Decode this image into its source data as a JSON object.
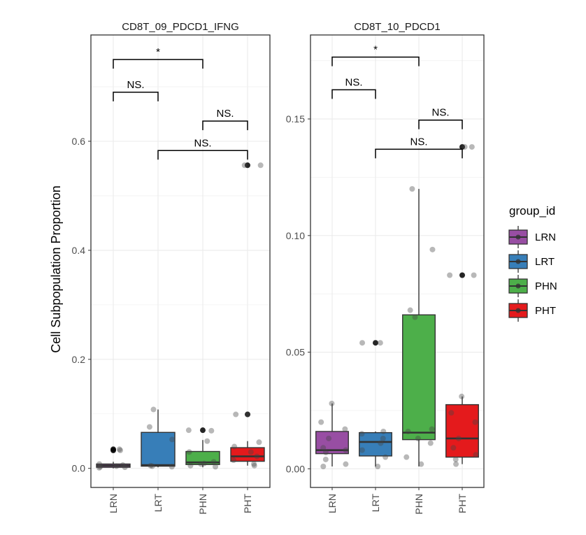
{
  "chart_data": {
    "type": "box",
    "ylabel": "Cell Subpopulation Proportion",
    "groups": [
      "LRN",
      "LRT",
      "PHN",
      "PHT"
    ],
    "legend": {
      "title": "group_id",
      "position": "right",
      "items": [
        {
          "label": "LRN",
          "color": "#984ea3"
        },
        {
          "label": "LRT",
          "color": "#377eb8"
        },
        {
          "label": "PHN",
          "color": "#4daf4a"
        },
        {
          "label": "PHT",
          "color": "#e41a1c"
        }
      ]
    },
    "grid": true,
    "facets": [
      {
        "title": "CD8T_09_PDCD1_IFNG",
        "ylim": [
          -0.035,
          0.795
        ],
        "yticks": [
          0.0,
          0.2,
          0.4,
          0.6
        ],
        "ytick_labels": [
          "0.0",
          "0.2",
          "0.4",
          "0.6"
        ],
        "boxes": [
          {
            "group": "LRN",
            "min": 0.0,
            "q1": 0.002,
            "median": 0.005,
            "q3": 0.008,
            "max": 0.012,
            "outliers": [
              0.035,
              0.033
            ],
            "points": [
              0.002,
              0.003,
              0.004,
              0.006,
              0.008,
              0.035,
              0.033,
              0.001
            ]
          },
          {
            "group": "LRT",
            "min": 0.002,
            "q1": 0.004,
            "median": 0.006,
            "q3": 0.066,
            "max": 0.108,
            "outliers": [],
            "points": [
              0.108,
              0.076,
              0.053,
              0.005,
              0.004,
              0.003
            ]
          },
          {
            "group": "PHN",
            "min": 0.002,
            "q1": 0.007,
            "median": 0.011,
            "q3": 0.031,
            "max": 0.052,
            "outliers": [
              0.07
            ],
            "points": [
              0.07,
              0.069,
              0.05,
              0.03,
              0.012,
              0.009,
              0.005,
              0.003,
              0.008
            ]
          },
          {
            "group": "PHT",
            "min": 0.005,
            "q1": 0.013,
            "median": 0.022,
            "q3": 0.038,
            "max": 0.05,
            "outliers": [
              0.099,
              0.556
            ],
            "points": [
              0.556,
              0.556,
              0.099,
              0.099,
              0.048,
              0.04,
              0.03,
              0.022,
              0.015,
              0.008,
              0.005
            ]
          }
        ],
        "comparisons": [
          {
            "groups": [
              "LRN",
              "PHN"
            ],
            "y": 0.75,
            "label": "*"
          },
          {
            "groups": [
              "LRN",
              "LRT"
            ],
            "y": 0.69,
            "label": "NS."
          },
          {
            "groups": [
              "PHN",
              "PHT"
            ],
            "y": 0.637,
            "label": "NS."
          },
          {
            "groups": [
              "LRT",
              "PHT"
            ],
            "y": 0.583,
            "label": "NS."
          }
        ]
      },
      {
        "title": "CD8T_10_PDCD1",
        "ylim": [
          -0.008,
          0.186
        ],
        "yticks": [
          0.0,
          0.05,
          0.1,
          0.15
        ],
        "ytick_labels": [
          "0.00",
          "0.05",
          "0.10",
          "0.15"
        ],
        "boxes": [
          {
            "group": "LRN",
            "min": 0.001,
            "q1": 0.0065,
            "median": 0.008,
            "q3": 0.016,
            "max": 0.028,
            "outliers": [],
            "points": [
              0.028,
              0.02,
              0.017,
              0.013,
              0.009,
              0.008,
              0.007,
              0.004,
              0.002,
              0.001
            ]
          },
          {
            "group": "LRT",
            "min": 0.001,
            "q1": 0.0055,
            "median": 0.0115,
            "q3": 0.0155,
            "max": 0.016,
            "outliers": [
              0.054
            ],
            "points": [
              0.054,
              0.054,
              0.016,
              0.015,
              0.013,
              0.011,
              0.008,
              0.005,
              0.001
            ]
          },
          {
            "group": "PHN",
            "min": 0.001,
            "q1": 0.0125,
            "median": 0.0155,
            "q3": 0.066,
            "max": 0.12,
            "outliers": [],
            "points": [
              0.12,
              0.094,
              0.068,
              0.065,
              0.017,
              0.016,
              0.013,
              0.011,
              0.005,
              0.002
            ]
          },
          {
            "group": "PHT",
            "min": 0.002,
            "q1": 0.005,
            "median": 0.013,
            "q3": 0.0275,
            "max": 0.031,
            "outliers": [
              0.083,
              0.138
            ],
            "points": [
              0.138,
              0.138,
              0.083,
              0.083,
              0.031,
              0.024,
              0.02,
              0.013,
              0.009,
              0.006,
              0.004,
              0.002
            ]
          }
        ],
        "comparisons": [
          {
            "groups": [
              "LRN",
              "PHN"
            ],
            "y": 0.1765,
            "label": "*"
          },
          {
            "groups": [
              "LRN",
              "LRT"
            ],
            "y": 0.1625,
            "label": "NS."
          },
          {
            "groups": [
              "PHN",
              "PHT"
            ],
            "y": 0.1495,
            "label": "NS."
          },
          {
            "groups": [
              "LRT",
              "PHT"
            ],
            "y": 0.137,
            "label": "NS."
          }
        ]
      }
    ]
  }
}
